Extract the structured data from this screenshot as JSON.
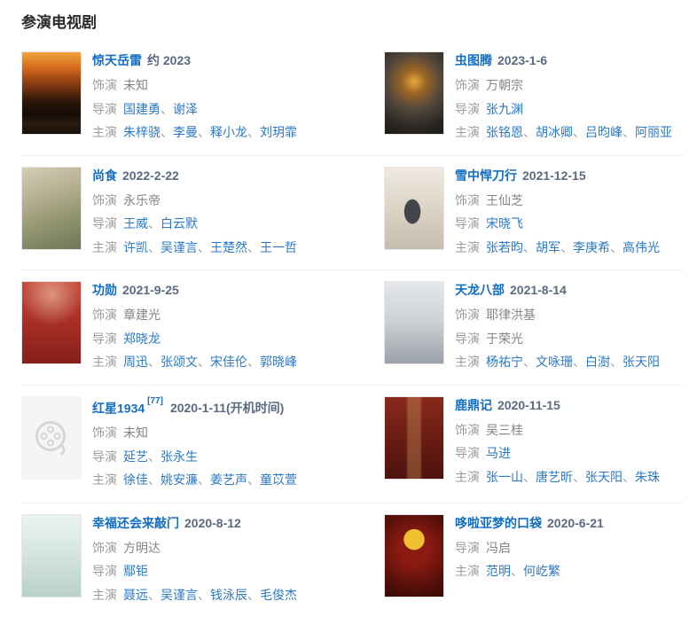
{
  "section": {
    "title": "参演电视剧"
  },
  "labels": {
    "plays": "饰演",
    "director": "导演",
    "starring": "主演",
    "separator": "、"
  },
  "colors": {
    "title_link_blue": "#136ec2",
    "name_link_blue": "#2b78c6",
    "date_slate": "#5b6a83",
    "label_gray": "#9c9c9c",
    "plain_value_gray": "#848484",
    "divider": "#ededed",
    "placeholder_bg": "#f5f5f5",
    "placeholder_icon": "#d6d6d6"
  },
  "items": [
    {
      "title": "惊天岳雷",
      "citation": "",
      "date": "约 2023",
      "poster_class": "p1",
      "placeholder": false,
      "plays": "未知",
      "directors": [
        "国建勇",
        "谢泽"
      ],
      "directors_linked": true,
      "starring": [
        "朱梓骁",
        "李曼",
        "释小龙",
        "刘玥霏"
      ]
    },
    {
      "title": "虫图腾",
      "citation": "",
      "date": "2023-1-6",
      "poster_class": "p2",
      "placeholder": false,
      "plays": "万朝宗",
      "directors": [
        "张九渊"
      ],
      "directors_linked": true,
      "starring": [
        "张铭恩",
        "胡冰卿",
        "吕昀峰",
        "阿丽亚"
      ]
    },
    {
      "title": "尚食",
      "citation": "",
      "date": "2022-2-22",
      "poster_class": "p3",
      "placeholder": false,
      "plays": "永乐帝",
      "directors": [
        "王威",
        "白云默"
      ],
      "directors_linked": true,
      "starring": [
        "许凯",
        "吴谨言",
        "王楚然",
        "王一哲"
      ]
    },
    {
      "title": "雪中悍刀行",
      "citation": "",
      "date": "2021-12-15",
      "poster_class": "p4",
      "placeholder": false,
      "plays": "王仙芝",
      "directors": [
        "宋晓飞"
      ],
      "directors_linked": true,
      "starring": [
        "张若昀",
        "胡军",
        "李庚希",
        "高伟光"
      ]
    },
    {
      "title": "功勋",
      "citation": "",
      "date": "2021-9-25",
      "poster_class": "p5",
      "placeholder": false,
      "plays": "章建光",
      "directors": [
        "郑晓龙"
      ],
      "directors_linked": true,
      "starring": [
        "周迅",
        "张颂文",
        "宋佳伦",
        "郭晓峰"
      ]
    },
    {
      "title": "天龙八部",
      "citation": "",
      "date": "2021-8-14",
      "poster_class": "p6",
      "placeholder": false,
      "plays": "耶律洪基",
      "directors": [
        "于荣光"
      ],
      "directors_linked": false,
      "starring": [
        "杨祐宁",
        "文咏珊",
        "白澍",
        "张天阳"
      ]
    },
    {
      "title": "红星1934",
      "citation": "[77]",
      "date": "2020-1-11(开机时间)",
      "poster_class": "placeholder",
      "placeholder": true,
      "plays": "未知",
      "directors": [
        "延艺",
        "张永生"
      ],
      "directors_linked": true,
      "starring": [
        "徐佳",
        "姚安濂",
        "姜艺声",
        "童苡萱"
      ]
    },
    {
      "title": "鹿鼎记",
      "citation": "",
      "date": "2020-11-15",
      "poster_class": "p8",
      "placeholder": false,
      "plays": "吴三桂",
      "directors": [
        "马进"
      ],
      "directors_linked": true,
      "starring": [
        "张一山",
        "唐艺昕",
        "张天阳",
        "朱珠"
      ]
    },
    {
      "title": "幸福还会来敲门",
      "citation": "",
      "date": "2020-8-12",
      "poster_class": "p9",
      "placeholder": false,
      "plays": "方明达",
      "directors": [
        "鄢钜"
      ],
      "directors_linked": true,
      "starring": [
        "聂远",
        "吴谨言",
        "钱泳辰",
        "毛俊杰"
      ]
    },
    {
      "title": "哆啦亚梦的口袋",
      "citation": "",
      "date": "2020-6-21",
      "poster_class": "p10",
      "placeholder": false,
      "plays": null,
      "directors": [
        "冯启"
      ],
      "directors_linked": false,
      "starring": [
        "范明",
        "何屹繁"
      ]
    }
  ]
}
